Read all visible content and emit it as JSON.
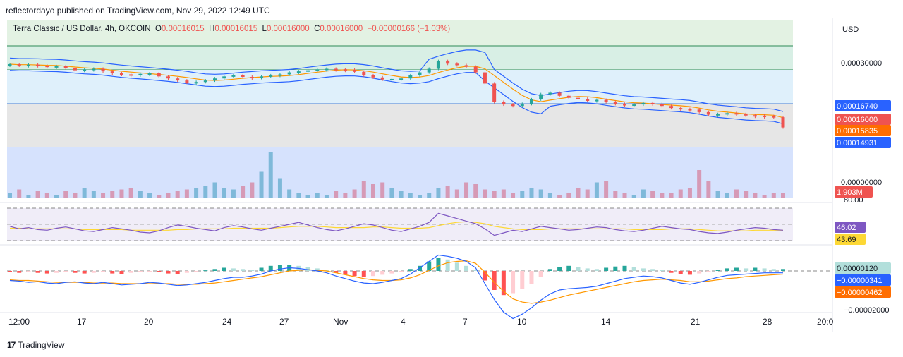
{
  "header": {
    "published": "reflectordayo published on TradingView.com, Nov 29, 2022 12:49 UTC"
  },
  "legend": {
    "symbol": "Terra Classic / US Dollar, 4h, OKCOIN",
    "o_label": "O",
    "o": "0.00016015",
    "h_label": "H",
    "h": "0.00016015",
    "l_label": "L",
    "l": "0.00016000",
    "c_label": "C",
    "c": "0.00016000",
    "change": "−0.00000166 (−1.03%)"
  },
  "footer": {
    "brand": "TradingView",
    "logo": "17"
  },
  "colors": {
    "up": "#26a69a",
    "down": "#ef5350",
    "bb": "#2962ff",
    "ma": "#ff9800",
    "rsi": "#7e57c2",
    "rsi_ma": "#fdd835"
  },
  "chart_data": [
    {
      "type": "candlestick",
      "currency": "USD",
      "y_ticks": [
        "0.00030000",
        "0.00000000"
      ],
      "x_ticks": [
        "12:00",
        "17",
        "20",
        "24",
        "27",
        "Nov",
        "4",
        "7",
        "10",
        "14",
        "21",
        "28",
        "20:0"
      ],
      "price_labels": [
        {
          "value": "0.00016740",
          "color": "#2962ff"
        },
        {
          "value": "0.00016000",
          "color": "#ef5350"
        },
        {
          "value": "0.00015835",
          "color": "#ff6d00"
        },
        {
          "value": "0.00014931",
          "color": "#2962ff"
        }
      ],
      "volume_label": "1.903M",
      "close_series": [
        0.000284,
        0.000282,
        0.000283,
        0.000281,
        0.000279,
        0.00028,
        0.000276,
        0.000272,
        0.000274,
        0.000275,
        0.00027,
        0.000266,
        0.000264,
        0.000262,
        0.000265,
        0.000266,
        0.00026,
        0.000256,
        0.000252,
        0.000248,
        0.000249,
        0.000252,
        0.000256,
        0.00026,
        0.000262,
        0.000259,
        0.000257,
        0.00026,
        0.000262,
        0.000264,
        0.000268,
        0.00027,
        0.000272,
        0.000274,
        0.000275,
        0.000274,
        0.000273,
        0.000269,
        0.000262,
        0.000258,
        0.000254,
        0.000255,
        0.000256,
        0.000262,
        0.000268,
        0.000275,
        0.00029,
        0.000285,
        0.000282,
        0.000279,
        0.000268,
        0.000246,
        0.00021,
        0.000205,
        0.000202,
        0.000206,
        0.000215,
        0.000225,
        0.000228,
        0.000222,
        0.000218,
        0.000216,
        0.000212,
        0.000214,
        0.00021,
        0.000206,
        0.000203,
        0.000205,
        0.000208,
        0.000206,
        0.000202,
        0.000198,
        0.000196,
        0.000195,
        0.00019,
        0.000185,
        0.000186,
        0.000188,
        0.000186,
        0.000184,
        0.000183,
        0.000182,
        0.00018,
        0.00016
      ],
      "volume_series": [
        0.3,
        0.5,
        0.2,
        0.4,
        0.3,
        0.2,
        0.4,
        0.3,
        0.6,
        0.4,
        0.3,
        0.4,
        0.5,
        0.6,
        0.4,
        0.3,
        0.2,
        0.3,
        0.4,
        0.5,
        0.6,
        0.7,
        0.9,
        0.6,
        0.5,
        0.7,
        0.9,
        1.5,
        2.6,
        1.1,
        0.5,
        0.3,
        0.2,
        0.3,
        0.2,
        0.4,
        0.3,
        0.5,
        1.0,
        0.8,
        0.9,
        0.6,
        0.4,
        0.3,
        0.2,
        0.3,
        0.6,
        0.7,
        0.5,
        0.9,
        0.8,
        0.5,
        0.4,
        0.5,
        0.3,
        0.4,
        0.6,
        0.5,
        0.3,
        0.2,
        0.3,
        0.6,
        0.5,
        0.9,
        1.0,
        0.4,
        0.3,
        0.2,
        0.5,
        0.4,
        0.3,
        0.3,
        0.5,
        0.6,
        1.6,
        1.0,
        0.4,
        0.3,
        0.5,
        0.4,
        0.3,
        0.2,
        0.3,
        0.3
      ]
    },
    {
      "type": "line",
      "name": "RSI",
      "y_ticks": [
        "80.00"
      ],
      "value_labels": [
        {
          "value": "46.02",
          "color": "#7e57c2"
        },
        {
          "value": "43.69",
          "color": "#fdd835"
        }
      ],
      "rsi_series": [
        52,
        48,
        50,
        47,
        46,
        49,
        51,
        48,
        45,
        44,
        47,
        50,
        48,
        46,
        43,
        42,
        45,
        50,
        54,
        52,
        49,
        47,
        45,
        50,
        53,
        51,
        48,
        46,
        49,
        52,
        55,
        58,
        54,
        50,
        47,
        45,
        48,
        52,
        56,
        54,
        50,
        46,
        44,
        48,
        52,
        58,
        72,
        68,
        64,
        60,
        56,
        48,
        38,
        42,
        46,
        44,
        48,
        52,
        50,
        48,
        46,
        47,
        49,
        51,
        50,
        47,
        45,
        44,
        46,
        49,
        52,
        50,
        48,
        47,
        44,
        42,
        41,
        43,
        46,
        48,
        50,
        49,
        47,
        46
      ],
      "ma_series": [
        49,
        49,
        48,
        48,
        48,
        48,
        48,
        48,
        47,
        47,
        47,
        47,
        47,
        46,
        46,
        46,
        46,
        46,
        47,
        47,
        48,
        48,
        48,
        48,
        49,
        49,
        49,
        49,
        49,
        50,
        51,
        52,
        52,
        52,
        51,
        50,
        50,
        50,
        50,
        51,
        51,
        50,
        49,
        49,
        49,
        50,
        53,
        56,
        58,
        59,
        58,
        56,
        52,
        50,
        48,
        47,
        47,
        47,
        48,
        48,
        48,
        48,
        48,
        48,
        48,
        48,
        48,
        47,
        47,
        47,
        47,
        48,
        48,
        48,
        47,
        46,
        45,
        45,
        45,
        45,
        46,
        46,
        46,
        46
      ]
    },
    {
      "type": "bar",
      "name": "MACD",
      "y_ticks": [
        "−0.00002000"
      ],
      "value_labels": [
        {
          "value": "0.00000120",
          "color": "#b2dfdb"
        },
        {
          "value": "−0.00000341",
          "color": "#2962ff"
        },
        {
          "value": "−0.00000462",
          "color": "#ff6d00"
        }
      ],
      "hist_series": [
        -0.2,
        -0.3,
        -0.2,
        -0.3,
        -0.4,
        -0.3,
        -0.2,
        -0.3,
        -0.4,
        -0.3,
        -0.2,
        -0.4,
        -0.5,
        -0.3,
        -0.2,
        -0.1,
        -0.2,
        -0.4,
        -0.5,
        -0.3,
        -0.2,
        0.1,
        0.3,
        0.5,
        0.4,
        0.3,
        0.2,
        0.5,
        0.8,
        0.9,
        1.0,
        0.8,
        0.6,
        0.4,
        0.2,
        -0.3,
        -0.6,
        -0.8,
        -1.0,
        -0.8,
        -0.6,
        -0.4,
        -0.2,
        0.3,
        0.8,
        1.5,
        2.0,
        1.8,
        1.3,
        0.8,
        0.2,
        -1.5,
        -3.0,
        -3.8,
        -3.5,
        -2.8,
        -2.0,
        -1.0,
        0.3,
        0.6,
        0.8,
        0.6,
        0.4,
        0.3,
        0.5,
        0.7,
        0.8,
        0.6,
        0.4,
        0.3,
        0.2,
        -0.3,
        -0.5,
        -0.6,
        -0.4,
        -0.2,
        0.2,
        0.4,
        0.5,
        0.4,
        0.5,
        0.4,
        0.3,
        0.3
      ],
      "macd_series": [
        -1.5,
        -1.6,
        -1.8,
        -1.7,
        -1.9,
        -2.0,
        -1.8,
        -1.7,
        -1.9,
        -2.0,
        -1.8,
        -2.0,
        -2.2,
        -2.1,
        -2.0,
        -1.8,
        -1.9,
        -2.1,
        -2.3,
        -2.2,
        -2.0,
        -1.8,
        -1.5,
        -1.2,
        -1.0,
        -1.0,
        -0.8,
        -0.5,
        0.0,
        0.3,
        0.5,
        0.4,
        0.2,
        0.0,
        -0.3,
        -0.8,
        -1.2,
        -1.6,
        -1.9,
        -2.0,
        -1.8,
        -1.5,
        -1.2,
        -0.5,
        0.5,
        1.5,
        2.5,
        2.3,
        2.0,
        1.5,
        0.5,
        -2.0,
        -4.5,
        -6.5,
        -7.5,
        -6.8,
        -5.8,
        -4.6,
        -3.6,
        -3.0,
        -2.8,
        -2.7,
        -2.6,
        -2.4,
        -2.0,
        -1.6,
        -1.2,
        -1.0,
        -0.8,
        -0.9,
        -1.1,
        -1.5,
        -1.9,
        -2.1,
        -1.8,
        -1.4,
        -1.0,
        -0.7,
        -0.6,
        -0.5,
        -0.4,
        -0.3,
        -0.3,
        -0.3
      ],
      "signal_series": [
        -1.4,
        -1.5,
        -1.5,
        -1.6,
        -1.7,
        -1.8,
        -1.8,
        -1.8,
        -1.8,
        -1.9,
        -1.9,
        -1.9,
        -2.0,
        -2.0,
        -2.0,
        -2.0,
        -2.0,
        -2.0,
        -2.1,
        -2.1,
        -2.1,
        -2.0,
        -1.9,
        -1.7,
        -1.5,
        -1.3,
        -1.1,
        -0.9,
        -0.6,
        -0.3,
        0.0,
        0.1,
        0.2,
        0.1,
        0.0,
        -0.3,
        -0.6,
        -0.9,
        -1.2,
        -1.4,
        -1.5,
        -1.5,
        -1.4,
        -1.1,
        -0.6,
        0.1,
        0.8,
        1.3,
        1.5,
        1.6,
        1.2,
        -0.2,
        -1.8,
        -3.2,
        -4.4,
        -4.9,
        -5.1,
        -4.9,
        -4.6,
        -4.2,
        -3.8,
        -3.5,
        -3.2,
        -2.9,
        -2.6,
        -2.3,
        -2.0,
        -1.7,
        -1.5,
        -1.4,
        -1.3,
        -1.4,
        -1.5,
        -1.7,
        -1.7,
        -1.6,
        -1.4,
        -1.2,
        -1.1,
        -0.9,
        -0.8,
        -0.7,
        -0.6,
        -0.5
      ]
    }
  ]
}
